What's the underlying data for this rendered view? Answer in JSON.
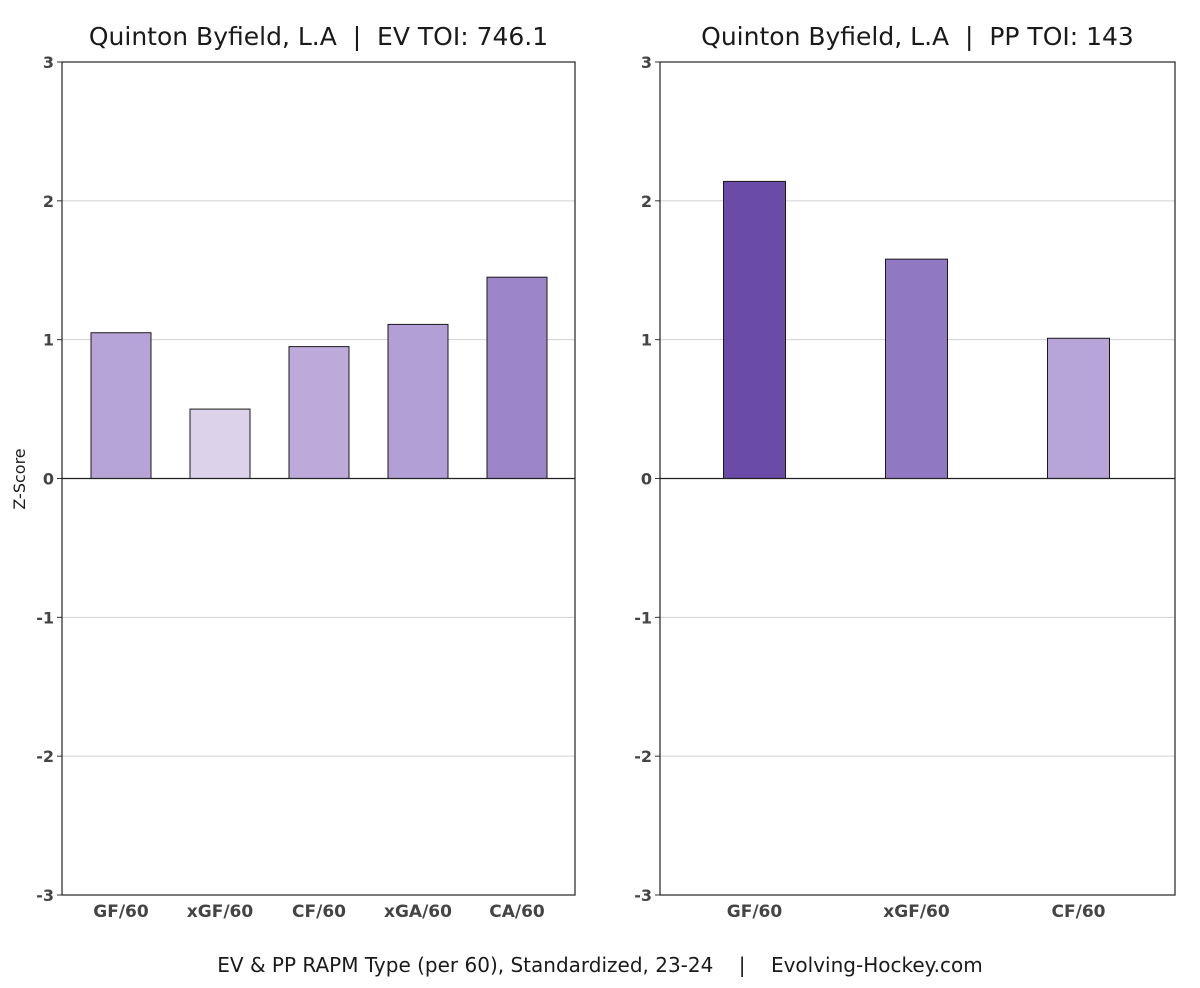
{
  "caption": "EV & PP RAPM Type (per 60), Standardized, 23-24    |    Evolving-Hockey.com",
  "chart_data": [
    {
      "type": "bar",
      "title": "Quinton Byfield, L.A  |  EV TOI: 746.1",
      "ylabel": "Z-Score",
      "xlabel": "",
      "ylim": [
        -3,
        3
      ],
      "yticks": [
        "3",
        "2",
        "1",
        "0",
        "-1",
        "-2",
        "-3"
      ],
      "grid": true,
      "categories": [
        "GF/60",
        "xGF/60",
        "CF/60",
        "xGA/60",
        "CA/60"
      ],
      "values": [
        1.05,
        0.5,
        0.95,
        1.11,
        1.45
      ],
      "colors": [
        "#b6a4d8",
        "#dcd3eb",
        "#bdaadb",
        "#b19fd6",
        "#9c85c8"
      ]
    },
    {
      "type": "bar",
      "title": "Quinton Byfield, L.A  |  PP TOI: 143",
      "ylabel": "",
      "xlabel": "",
      "ylim": [
        -3,
        3
      ],
      "yticks": [
        "3",
        "2",
        "1",
        "0",
        "-1",
        "-2",
        "-3"
      ],
      "grid": true,
      "categories": [
        "GF/60",
        "xGF/60",
        "CF/60"
      ],
      "values": [
        2.14,
        1.58,
        1.01
      ],
      "colors": [
        "#6a4ca8",
        "#9178c2",
        "#b7a4d9"
      ]
    }
  ]
}
